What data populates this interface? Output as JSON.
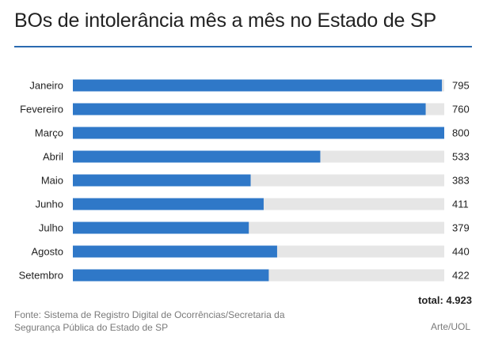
{
  "header": {
    "title": "BOs de intolerância mês a mês no Estado de SP"
  },
  "chart_data": {
    "type": "bar",
    "orientation": "horizontal",
    "categories": [
      "Janeiro",
      "Fevereiro",
      "Março",
      "Abril",
      "Maio",
      "Junho",
      "Julho",
      "Agosto",
      "Setembro"
    ],
    "values": [
      795,
      760,
      800,
      533,
      383,
      411,
      379,
      440,
      422
    ],
    "value_labels": [
      "795",
      "760",
      "800",
      "533",
      "383",
      "411",
      "379",
      "440",
      "422"
    ],
    "xlim": [
      0,
      800
    ],
    "grid": false,
    "bar_color": "#2f78c8",
    "track_color": "#e6e6e6"
  },
  "footer": {
    "total": "total: 4.923",
    "source": "Fonte: Sistema de Registro Digital de Ocorrências/Secretaria da Segurança Pública do Estado de SP",
    "credit": "Arte/UOL"
  },
  "colors": {
    "accent_rule": "#2a6ab0",
    "text": "#222222",
    "muted_text": "#7a7a7a"
  }
}
